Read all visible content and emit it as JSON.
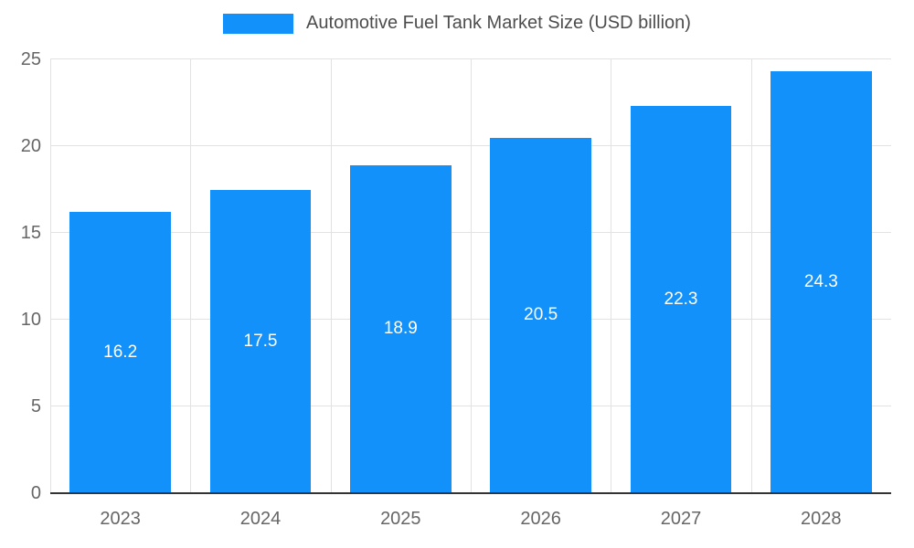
{
  "chart_data": {
    "type": "bar",
    "title": "Automotive Fuel Tank Market Size (USD billion)",
    "categories": [
      "2023",
      "2024",
      "2025",
      "2026",
      "2027",
      "2028"
    ],
    "values": [
      16.2,
      17.5,
      18.9,
      20.5,
      22.3,
      24.3
    ],
    "value_labels": [
      "16.2",
      "17.5",
      "18.9",
      "20.5",
      "22.3",
      "24.3"
    ],
    "xlabel": "",
    "ylabel": "",
    "ylim": [
      0,
      25
    ],
    "yticks": [
      0,
      5,
      10,
      15,
      20,
      25
    ],
    "grid": true,
    "legend_position": "top",
    "colors": {
      "bar": "#1291fb",
      "value_label": "#ffffff",
      "axis_text": "#666666",
      "title_text": "#4d4d4d",
      "grid": "#e2e2e2",
      "baseline": "#333333"
    }
  }
}
